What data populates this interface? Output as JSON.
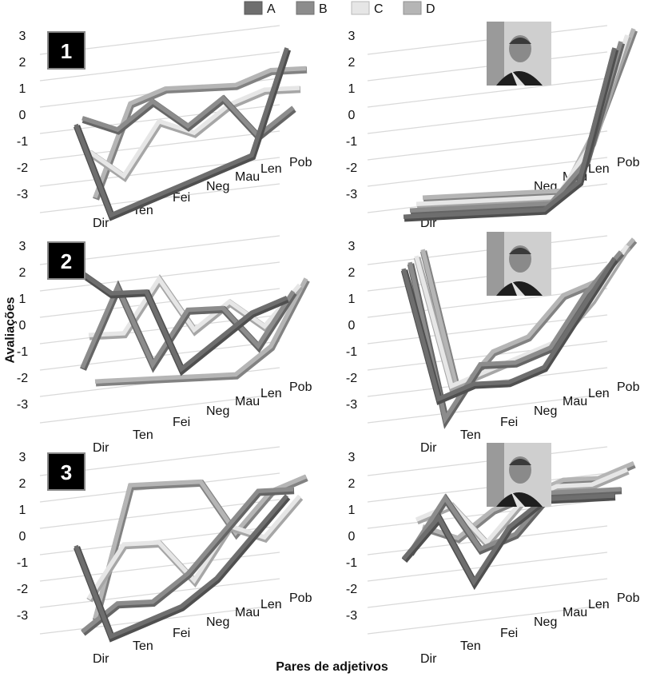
{
  "figure": {
    "ylabel": "Avaliações",
    "xlabel": "Pares de adjetivos"
  },
  "legend": [
    {
      "name": "A",
      "color": "#6e6e6e"
    },
    {
      "name": "B",
      "color": "#8c8c8c"
    },
    {
      "name": "C",
      "color": "#e6e6e6"
    },
    {
      "name": "D",
      "color": "#b5b5b5"
    }
  ],
  "chart_data": [
    {
      "type": "line",
      "panel": "1",
      "badge": "1",
      "has_photo": false,
      "categories": [
        "Dir",
        "Ten",
        "Fei",
        "Neg",
        "Mau",
        "Len",
        "Pob"
      ],
      "y_ticks": [
        "3",
        "2",
        "1",
        "0",
        "-1",
        "-2",
        "-3"
      ],
      "ylim": [
        -3,
        3
      ],
      "legend_placement": "top",
      "series": [
        {
          "name": "A",
          "values": [
            0.5,
            -3,
            -2.5,
            -2,
            -1.5,
            -1,
            3
          ]
        },
        {
          "name": "B",
          "values": [
            0.5,
            0,
            1,
            0,
            1,
            -0.5,
            0.5
          ]
        },
        {
          "name": "C",
          "values": [
            -1,
            -2,
            0,
            -0.5,
            0.5,
            1,
            1
          ]
        },
        {
          "name": "D",
          "values": [
            -3,
            0.5,
            1,
            1,
            1,
            1.5,
            1.5
          ]
        }
      ]
    },
    {
      "type": "line",
      "panel": "1-photo",
      "badge": "",
      "has_photo": true,
      "categories": [
        "Dir",
        "Ten",
        "Fei",
        "Neg",
        "Mau",
        "Len",
        "Pob"
      ],
      "y_ticks": [
        "3",
        "2",
        "1",
        "0",
        "-1",
        "-2",
        "-3"
      ],
      "ylim": [
        -3,
        3
      ],
      "series": [
        {
          "name": "A",
          "values": [
            -3,
            -3,
            -3,
            -3,
            -3,
            -2,
            3
          ]
        },
        {
          "name": "B",
          "values": [
            -3,
            -3,
            -3,
            -3,
            -3,
            -1.5,
            3
          ]
        },
        {
          "name": "C",
          "values": [
            -3,
            -3,
            -3,
            -3,
            -3,
            -1,
            3
          ]
        },
        {
          "name": "D",
          "values": [
            -3,
            -3,
            -3,
            -3,
            -3,
            -0.5,
            3
          ]
        }
      ]
    },
    {
      "type": "line",
      "panel": "2",
      "badge": "2",
      "has_photo": false,
      "categories": [
        "Dir",
        "Ten",
        "Fei",
        "Neg",
        "Mau",
        "Len",
        "Pob"
      ],
      "y_ticks": [
        "3",
        "2",
        "1",
        "0",
        "-1",
        "-2",
        "-3"
      ],
      "ylim": [
        -3,
        3
      ],
      "series": [
        {
          "name": "A",
          "values": [
            3,
            2,
            2,
            -1,
            0,
            1,
            1.5
          ]
        },
        {
          "name": "B",
          "values": [
            -1,
            2,
            -1,
            1,
            1,
            -0.5,
            1.5
          ]
        },
        {
          "name": "C",
          "values": [
            0,
            0,
            2,
            0,
            1,
            0,
            1.5
          ]
        },
        {
          "name": "D",
          "values": [
            -2,
            -2,
            -2,
            -2,
            -2,
            -1,
            1.5
          ]
        }
      ]
    },
    {
      "type": "line",
      "panel": "2-photo",
      "badge": "",
      "has_photo": true,
      "categories": [
        "Dir",
        "Ten",
        "Fei",
        "Neg",
        "Mau",
        "Len",
        "Pob"
      ],
      "y_ticks": [
        "3",
        "2",
        "1",
        "0",
        "-1",
        "-2",
        "-3"
      ],
      "ylim": [
        -3,
        3
      ],
      "series": [
        {
          "name": "A",
          "values": [
            3,
            -2,
            -1.5,
            -1.5,
            -1,
            1,
            3
          ]
        },
        {
          "name": "B",
          "values": [
            3,
            -3,
            -1,
            -1,
            -0.5,
            1.5,
            3
          ]
        },
        {
          "name": "C",
          "values": [
            3,
            -2,
            -1.5,
            -1,
            -0.5,
            1,
            3
          ]
        },
        {
          "name": "D",
          "values": [
            3,
            -2.5,
            -1,
            -0.5,
            1,
            1.5,
            3
          ]
        }
      ]
    },
    {
      "type": "line",
      "panel": "3",
      "badge": "3",
      "has_photo": false,
      "categories": [
        "Dir",
        "Ten",
        "Fei",
        "Neg",
        "Mau",
        "Len",
        "Pob"
      ],
      "y_ticks": [
        "3",
        "2",
        "1",
        "0",
        "-1",
        "-2",
        "-3"
      ],
      "ylim": [
        -3,
        3
      ],
      "series": [
        {
          "name": "A",
          "values": [
            0.5,
            -3,
            -2.5,
            -2,
            -1,
            0.5,
            2
          ]
        },
        {
          "name": "B",
          "values": [
            -3,
            -2,
            -2,
            -1,
            0.5,
            2,
            2
          ]
        },
        {
          "name": "C",
          "values": [
            -2,
            0,
            0,
            -1.5,
            0.5,
            0,
            1.5
          ]
        },
        {
          "name": "D",
          "values": [
            -3,
            2,
            2,
            2,
            0,
            1.5,
            2
          ]
        }
      ]
    },
    {
      "type": "line",
      "panel": "3-photo",
      "badge": "",
      "has_photo": true,
      "categories": [
        "Dir",
        "Ten",
        "Fei",
        "Neg",
        "Mau",
        "Len",
        "Pob"
      ],
      "y_ticks": [
        "3",
        "2",
        "1",
        "0",
        "-1",
        "-2",
        "-3"
      ],
      "ylim": [
        -3,
        3
      ],
      "series": [
        {
          "name": "A",
          "values": [
            0,
            1.5,
            -1,
            1,
            2,
            2,
            2
          ]
        },
        {
          "name": "B",
          "values": [
            0,
            2,
            0,
            0.5,
            2,
            2,
            2
          ]
        },
        {
          "name": "C",
          "values": [
            1,
            1.5,
            0,
            1.5,
            2,
            2,
            2.5
          ]
        },
        {
          "name": "D",
          "values": [
            0.5,
            0,
            1,
            1.5,
            2,
            2,
            2.5
          ]
        }
      ]
    }
  ]
}
